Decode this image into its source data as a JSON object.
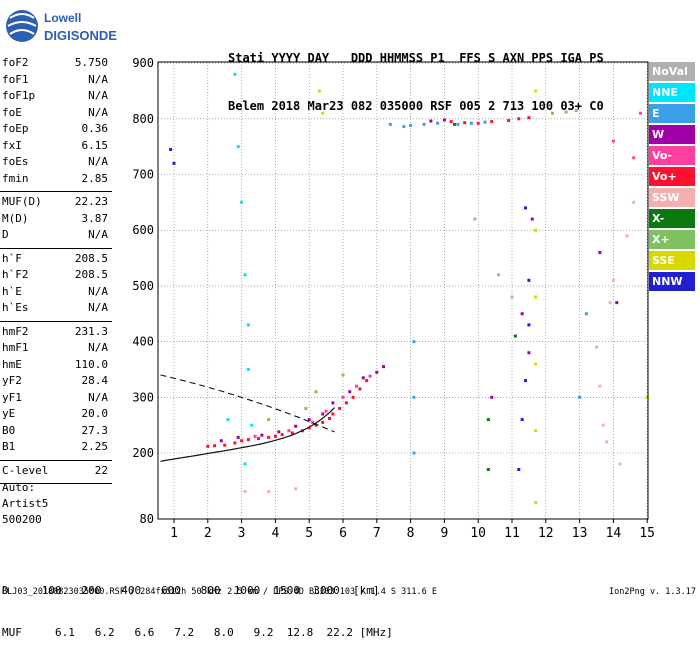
{
  "logo": {
    "line1": "Lowell",
    "line2": "DIGISONDE"
  },
  "header": {
    "line1": "Stati YYYY DAY   DDD HHMMSS P1  FFS S AXN PPS IGA PS",
    "line2": "Belem 2018 Mar23 082 035000 RSF 005 2 713 100 03+ C0"
  },
  "params": [
    {
      "label": "foF2",
      "value": "5.750"
    },
    {
      "label": "foF1",
      "value": "N/A"
    },
    {
      "label": "foF1p",
      "value": "N/A"
    },
    {
      "label": "foE",
      "value": "N/A"
    },
    {
      "label": "foEp",
      "value": "0.36"
    },
    {
      "label": "fxI",
      "value": "6.15"
    },
    {
      "label": "foEs",
      "value": "N/A"
    },
    {
      "label": "fmin",
      "value": "2.85"
    },
    {
      "sep": true
    },
    {
      "label": "MUF(D)",
      "value": "22.23"
    },
    {
      "label": "M(D)",
      "value": "3.87"
    },
    {
      "label": "D",
      "value": "N/A"
    },
    {
      "sep": true
    },
    {
      "label": "h`F",
      "value": "208.5"
    },
    {
      "label": "h`F2",
      "value": "208.5"
    },
    {
      "label": "h`E",
      "value": "N/A"
    },
    {
      "label": "h`Es",
      "value": "N/A"
    },
    {
      "sep": true
    },
    {
      "label": "hmF2",
      "value": "231.3"
    },
    {
      "label": "hmF1",
      "value": "N/A"
    },
    {
      "label": "hmE",
      "value": "110.0"
    },
    {
      "label": "yF2",
      "value": "28.4"
    },
    {
      "label": "yF1",
      "value": "N/A"
    },
    {
      "label": "yE",
      "value": "20.0"
    },
    {
      "label": "B0",
      "value": "27.3"
    },
    {
      "label": "B1",
      "value": "2.25"
    },
    {
      "sep": true
    },
    {
      "label": "C-level",
      "value": "22"
    },
    {
      "sep": true
    }
  ],
  "auto": {
    "line1": "Auto:",
    "line2": "Artist5",
    "line3": "500200"
  },
  "legend": [
    {
      "label": "NoVal",
      "color": "#b0b0b0"
    },
    {
      "label": "NNE",
      "color": "#00e5ff"
    },
    {
      "label": "E",
      "color": "#3aa0e8"
    },
    {
      "label": "W",
      "color": "#a000a8"
    },
    {
      "label": "Vo-",
      "color": "#ff3fa0"
    },
    {
      "label": "Vo+",
      "color": "#ff1030"
    },
    {
      "label": "SSW",
      "color": "#f4b0b0"
    },
    {
      "label": "X-",
      "color": "#0a7a10"
    },
    {
      "label": "X+",
      "color": "#7fc060"
    },
    {
      "label": "SSE",
      "color": "#d8d800"
    },
    {
      "label": "NNW",
      "color": "#2020d0"
    }
  ],
  "dmuf": {
    "d_label": "D",
    "d_values": [
      "100",
      "200",
      "400",
      "600",
      "800",
      "1000",
      "1500",
      "3000",
      "[km]"
    ],
    "muf_label": "MUF",
    "muf_values": [
      "6.1",
      "6.2",
      "6.6",
      "7.2",
      "8.0",
      "9.2",
      "12.8",
      "22.2",
      "[MHz]"
    ]
  },
  "footer": {
    "left": "BLJ03_20180823035000.RSF / 284fx512h 50 kHz 2.5 km / DPS-4D BLJ03 103 / 1.4 S 311.6 E",
    "right": "Ion2Png v. 1.3.17"
  },
  "chart_data": {
    "type": "scatter",
    "title": "",
    "xlabel": "",
    "ylabel": "",
    "xlim": [
      0.6,
      15.2
    ],
    "ylim": [
      80,
      900
    ],
    "x_ticks": [
      1,
      2,
      3,
      4,
      5,
      6,
      7,
      8,
      9,
      10,
      11,
      12,
      13,
      14,
      15
    ],
    "y_ticks": [
      80,
      200,
      300,
      400,
      500,
      600,
      700,
      800,
      900
    ],
    "foF2": 5.75,
    "series": [
      {
        "name": "Vo+",
        "color": "#ff1030",
        "points": [
          [
            2.0,
            212
          ],
          [
            2.2,
            213
          ],
          [
            2.5,
            214
          ],
          [
            2.8,
            218
          ],
          [
            3.0,
            222
          ],
          [
            3.2,
            224
          ],
          [
            3.5,
            226
          ],
          [
            3.8,
            228
          ],
          [
            4.0,
            230
          ],
          [
            4.2,
            233
          ],
          [
            4.5,
            236
          ],
          [
            4.8,
            240
          ],
          [
            5.0,
            245
          ],
          [
            5.2,
            250
          ],
          [
            5.4,
            255
          ],
          [
            5.6,
            262
          ],
          [
            5.7,
            270
          ],
          [
            5.9,
            280
          ],
          [
            6.1,
            290
          ],
          [
            6.3,
            300
          ],
          [
            6.5,
            315
          ],
          [
            6.7,
            330
          ],
          [
            9.2,
            795
          ],
          [
            9.6,
            793
          ],
          [
            10.0,
            792
          ],
          [
            10.4,
            795
          ],
          [
            10.9,
            797
          ],
          [
            11.2,
            800
          ],
          [
            11.5,
            802
          ]
        ]
      },
      {
        "name": "W",
        "color": "#a000a8",
        "points": [
          [
            2.4,
            222
          ],
          [
            2.9,
            228
          ],
          [
            3.6,
            232
          ],
          [
            4.1,
            238
          ],
          [
            4.6,
            248
          ],
          [
            5.0,
            260
          ],
          [
            5.4,
            270
          ],
          [
            5.7,
            290
          ],
          [
            6.2,
            310
          ],
          [
            6.6,
            335
          ],
          [
            7.0,
            345
          ],
          [
            7.2,
            355
          ],
          [
            10.4,
            300
          ],
          [
            11.3,
            450
          ],
          [
            11.5,
            380
          ],
          [
            11.6,
            620
          ],
          [
            13.6,
            560
          ],
          [
            14.1,
            470
          ],
          [
            8.6,
            796
          ],
          [
            9.0,
            798
          ]
        ]
      },
      {
        "name": "Vo-",
        "color": "#ff3fa0",
        "points": [
          [
            3.4,
            230
          ],
          [
            4.4,
            240
          ],
          [
            5.1,
            255
          ],
          [
            5.5,
            275
          ],
          [
            6.0,
            300
          ],
          [
            6.4,
            320
          ],
          [
            6.8,
            338
          ],
          [
            14.6,
            730
          ],
          [
            14.8,
            810
          ],
          [
            14.0,
            760
          ]
        ]
      },
      {
        "name": "E",
        "color": "#3aa0e8",
        "points": [
          [
            7.4,
            790
          ],
          [
            7.8,
            786
          ],
          [
            8.0,
            788
          ],
          [
            8.4,
            790
          ],
          [
            8.8,
            792
          ],
          [
            9.4,
            790
          ],
          [
            9.8,
            792
          ],
          [
            10.2,
            794
          ],
          [
            8.1,
            200
          ],
          [
            8.1,
            300
          ],
          [
            8.1,
            400
          ],
          [
            13.0,
            300
          ],
          [
            13.2,
            450
          ]
        ]
      },
      {
        "name": "NNE",
        "color": "#00e5ff",
        "points": [
          [
            2.8,
            880
          ],
          [
            2.9,
            750
          ],
          [
            3.0,
            650
          ],
          [
            3.1,
            520
          ],
          [
            3.2,
            430
          ],
          [
            3.2,
            350
          ],
          [
            3.3,
            250
          ],
          [
            3.1,
            180
          ],
          [
            2.6,
            260
          ]
        ]
      },
      {
        "name": "SSW",
        "color": "#f4b0b0",
        "points": [
          [
            13.5,
            390
          ],
          [
            13.6,
            320
          ],
          [
            13.7,
            250
          ],
          [
            13.8,
            220
          ],
          [
            13.9,
            470
          ],
          [
            14.0,
            510
          ],
          [
            14.4,
            590
          ],
          [
            14.6,
            650
          ],
          [
            14.2,
            180
          ],
          [
            3.1,
            130
          ],
          [
            3.8,
            130
          ],
          [
            4.6,
            135
          ]
        ]
      },
      {
        "name": "SSE",
        "color": "#d8d800",
        "points": [
          [
            11.7,
            600
          ],
          [
            11.7,
            480
          ],
          [
            11.7,
            360
          ],
          [
            11.7,
            240
          ],
          [
            11.7,
            110
          ],
          [
            11.7,
            850
          ],
          [
            15.0,
            300
          ],
          [
            5.4,
            810
          ],
          [
            5.3,
            850
          ]
        ]
      },
      {
        "name": "X+",
        "color": "#7fc060",
        "points": [
          [
            3.8,
            260
          ],
          [
            4.9,
            280
          ],
          [
            5.2,
            310
          ],
          [
            6.0,
            340
          ],
          [
            12.2,
            810
          ],
          [
            12.6,
            812
          ],
          [
            12.9,
            815
          ]
        ]
      },
      {
        "name": "X-",
        "color": "#0a7a10",
        "points": [
          [
            10.3,
            260
          ],
          [
            10.3,
            170
          ],
          [
            9.3,
            790
          ],
          [
            11.1,
            410
          ]
        ]
      },
      {
        "name": "NNW",
        "color": "#2020d0",
        "points": [
          [
            11.5,
            510
          ],
          [
            11.5,
            430
          ],
          [
            11.4,
            330
          ],
          [
            11.3,
            260
          ],
          [
            11.2,
            170
          ],
          [
            0.9,
            745
          ],
          [
            1.0,
            720
          ],
          [
            11.4,
            640
          ]
        ]
      },
      {
        "name": "NoVal",
        "color": "#b0b0b0",
        "points": [
          [
            11.0,
            480
          ],
          [
            10.6,
            520
          ],
          [
            9.9,
            620
          ]
        ]
      }
    ]
  }
}
